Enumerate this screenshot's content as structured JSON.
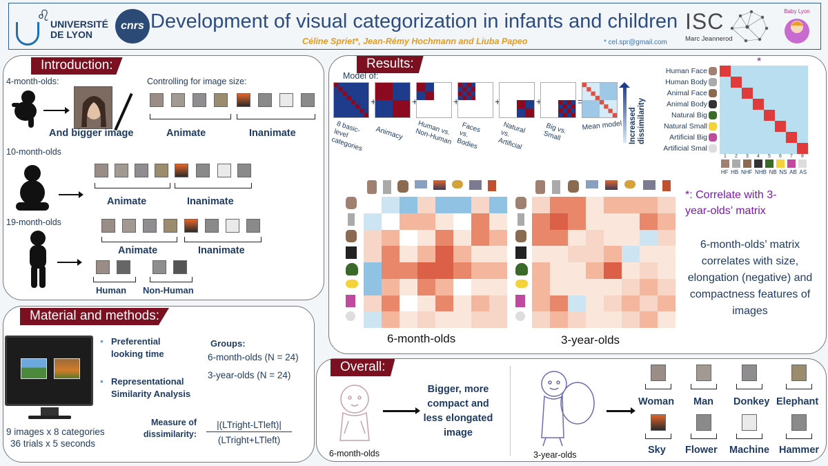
{
  "header": {
    "title": "Development of visual categorization in infants and children",
    "authors": "Céline Spriet*, Jean-Rémy Hochmann and Liuba Papeo",
    "email": "* cel.spr@gmail.com",
    "logo_universite_line1": "UNIVERSITÉ",
    "logo_universite_line2": "DE LYON",
    "logo_cnrs": "cnrs",
    "logo_isc": "ISC",
    "logo_isc_sub": "Marc Jeannerod",
    "logo_babylyon": "Baby Lyon"
  },
  "introduction": {
    "tag": "Introduction:",
    "age_4": "4-month-olds:",
    "controlling": "Controlling for image size:",
    "bigger_image": "And bigger image",
    "animate": "Animate",
    "inanimate": "Inanimate",
    "age_10": "10-month-olds",
    "age_19": "19-month-olds",
    "human": "Human",
    "non_human": "Non-Human"
  },
  "methods": {
    "tag": "Material and methods:",
    "bullet1": "Preferential looking time",
    "bullet2": "Representational Similarity Analysis",
    "groups_label": "Groups:",
    "group1": "6-month-olds (N = 24)",
    "group2": "3-year-olds (N = 24)",
    "images_line1": "9 images x 8 categories",
    "images_line2": "36 trials x 5 seconds",
    "measure_label": "Measure of dissimilarity:",
    "formula_num": "|(LTright-LTleft)|",
    "formula_den": "(LTright+LTleft)"
  },
  "results": {
    "tag": "Results:",
    "model_of": "Model of:",
    "models": [
      "8 basic-level categories",
      "Animacy",
      "Human vs. Non-Human",
      "Faces vs. Bodies",
      "Natural vs. Artificial",
      "Big vs. Small",
      "Mean model"
    ],
    "increased": "Increased dissimilarity",
    "star": "*",
    "categories": [
      "Human Face",
      "Human Body",
      "Animal Face",
      "Animal Body",
      "Natural Big",
      "Natural Small",
      "Artificial Big",
      "Artificial Smal"
    ],
    "matrix_cols": [
      "1",
      "2",
      "3",
      "4",
      "5",
      "6",
      "7",
      "8"
    ],
    "col_codes": [
      "HF",
      "HB",
      "NHF",
      "NHB",
      "NB",
      "NS",
      "AB",
      "AS"
    ],
    "label_6m": "6-month-olds",
    "label_3y": "3-year-olds",
    "correlate_note": "*: Correlate with 3-year-olds’ matrix",
    "finding": "6-month-olds’ matrix correlates with size, elongation (negative) and compactness features of images",
    "colors": {
      "red": "#8b0a20",
      "blue": "#1f3c8c",
      "accent_purple": "#7a1aa8"
    }
  },
  "overall": {
    "tag": "Overall:",
    "bigger_text": "Bigger, more compact and less elongated image",
    "label_6m": "6-month-olds",
    "label_3y": "3-year-olds",
    "items": [
      "Woman",
      "Man",
      "Donkey",
      "Elephant",
      "Sky",
      "Flower",
      "Machine",
      "Hammer"
    ]
  }
}
